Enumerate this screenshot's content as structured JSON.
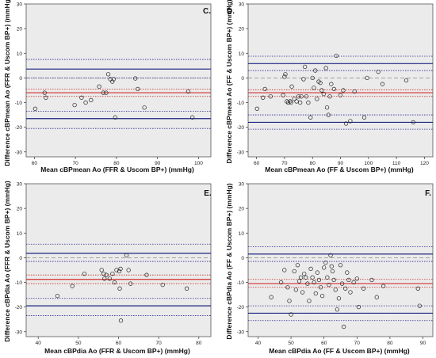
{
  "chart_data": [
    {
      "type": "scatter",
      "panel_label": "C.",
      "xlabel": "Mean cBPmean Ao (FFR & Uscom BP+) (mmHg)",
      "ylabel": "Difference cBPmean Ao (FFR & Uscom BP+) (mmHg)",
      "xlim": [
        58,
        103
      ],
      "ylim": [
        -32,
        30
      ],
      "xticks": [
        60,
        70,
        80,
        90,
        100
      ],
      "yticks": [
        30,
        20,
        10,
        0,
        -10,
        -20,
        -30
      ],
      "ref_lines": {
        "zero": 0,
        "mean_bias": -6.0,
        "bias_ci": [
          -4.5,
          -7.5
        ],
        "limits_of_agreement": [
          3.6,
          -16.5
        ],
        "loa_ci_upper": [
          7.5,
          0.0
        ],
        "loa_ci_lower": [
          -13.5,
          -20.5
        ]
      },
      "points": [
        [
          60.2,
          -12.5
        ],
        [
          62.5,
          -6.0
        ],
        [
          62.8,
          -8.0
        ],
        [
          69.8,
          -11.0
        ],
        [
          71.5,
          -8.0
        ],
        [
          72.5,
          -10.0
        ],
        [
          73.8,
          -9.0
        ],
        [
          75.8,
          -3.5
        ],
        [
          76.8,
          -6.0
        ],
        [
          77.5,
          -6.0
        ],
        [
          78.0,
          1.5
        ],
        [
          78.5,
          -0.5
        ],
        [
          79.0,
          -1.5
        ],
        [
          79.3,
          -0.5
        ],
        [
          79.7,
          -16.0
        ],
        [
          84.6,
          -0.2
        ],
        [
          85.2,
          -4.5
        ],
        [
          86.8,
          -12.0
        ],
        [
          97.5,
          -5.5
        ],
        [
          98.5,
          -16.0
        ]
      ]
    },
    {
      "type": "scatter",
      "panel_label": "D.",
      "xlabel": "Mean cBPmean Ao (FF & Uscom BP+) (mmHg)",
      "ylabel": "Difference cBPmean Ao (FF & Uscom BP+) (mmHg)",
      "xlim": [
        57,
        123
      ],
      "ylim": [
        -32,
        30
      ],
      "xticks": [
        60,
        70,
        80,
        90,
        100,
        110,
        120
      ],
      "yticks": [
        30,
        20,
        10,
        0,
        -10,
        -20,
        -30
      ],
      "ref_lines": {
        "zero": 0,
        "mean_bias": -6.0,
        "bias_ci": [
          -4.8,
          -7.5
        ],
        "limits_of_agreement": [
          5.8,
          -18.0
        ],
        "loa_ci_upper": [
          8.8,
          3.0
        ],
        "loa_ci_lower": [
          -15.0,
          -20.8
        ]
      },
      "points": [
        [
          60.2,
          -12.5
        ],
        [
          62.3,
          -8.0
        ],
        [
          63.0,
          -4.5
        ],
        [
          65.0,
          -7.5
        ],
        [
          69.5,
          -7.0
        ],
        [
          70.0,
          0.5
        ],
        [
          70.3,
          1.5
        ],
        [
          70.8,
          -9.5
        ],
        [
          71.3,
          -10.0
        ],
        [
          72.0,
          -9.5
        ],
        [
          72.3,
          -10.0
        ],
        [
          72.6,
          -3.5
        ],
        [
          73.5,
          -8.5
        ],
        [
          74.3,
          -9.5
        ],
        [
          75.0,
          -7.5
        ],
        [
          75.6,
          -10.0
        ],
        [
          76.0,
          -7.5
        ],
        [
          76.8,
          -0.5
        ],
        [
          77.3,
          4.5
        ],
        [
          77.8,
          -7.5
        ],
        [
          78.5,
          -10.0
        ],
        [
          79.3,
          -16.0
        ],
        [
          80.0,
          0.0
        ],
        [
          80.5,
          -4.0
        ],
        [
          81.0,
          3.0
        ],
        [
          81.6,
          -8.5
        ],
        [
          82.2,
          -1.5
        ],
        [
          82.8,
          -2.0
        ],
        [
          83.3,
          -5.0
        ],
        [
          84.0,
          -6.5
        ],
        [
          84.8,
          4.0
        ],
        [
          85.2,
          -12.0
        ],
        [
          85.7,
          -15.0
        ],
        [
          86.2,
          -7.5
        ],
        [
          86.7,
          -2.5
        ],
        [
          87.7,
          -4.5
        ],
        [
          88.5,
          9.0
        ],
        [
          90.0,
          -7.0
        ],
        [
          91.0,
          -5.0
        ],
        [
          92.0,
          -18.5
        ],
        [
          93.5,
          -17.5
        ],
        [
          95.0,
          -5.5
        ],
        [
          98.5,
          -16.0
        ],
        [
          99.5,
          0.0
        ],
        [
          103.5,
          2.5
        ],
        [
          105.0,
          -2.5
        ],
        [
          113.5,
          -1.0
        ],
        [
          116.0,
          -18.0
        ]
      ]
    },
    {
      "type": "scatter",
      "panel_label": "E.",
      "xlabel": "Mean cBPdia Ao (FFR & Uscom BP+) (mmHg)",
      "ylabel": "Difference cBPdia Ao (FFR & Uscom BP+) (mmHg)",
      "xlim": [
        37,
        83
      ],
      "ylim": [
        -32,
        30
      ],
      "xticks": [
        40,
        50,
        60,
        70,
        80
      ],
      "yticks": [
        30,
        20,
        10,
        0,
        -10,
        -20,
        -30
      ],
      "ref_lines": {
        "zero": 0,
        "mean_bias": -8.8,
        "bias_ci": [
          -7.0,
          -10.5
        ],
        "limits_of_agreement": [
          1.8,
          -19.5
        ],
        "loa_ci_upper": [
          5.5,
          -1.5
        ],
        "loa_ci_lower": [
          -16.5,
          -23.5
        ]
      },
      "points": [
        [
          44.8,
          -15.5
        ],
        [
          48.5,
          -11.5
        ],
        [
          51.5,
          -6.5
        ],
        [
          55.8,
          -5.0
        ],
        [
          56.3,
          -6.5
        ],
        [
          56.5,
          -8.5
        ],
        [
          57.0,
          -7.0
        ],
        [
          57.8,
          -8.5
        ],
        [
          58.5,
          -6.5
        ],
        [
          59.0,
          -10.0
        ],
        [
          59.5,
          -5.0
        ],
        [
          60.2,
          -5.5
        ],
        [
          60.5,
          -4.5
        ],
        [
          60.3,
          -12.5
        ],
        [
          60.6,
          -25.5
        ],
        [
          62.0,
          1.0
        ],
        [
          62.5,
          -5.0
        ],
        [
          63.0,
          -10.5
        ],
        [
          67.0,
          -7.0
        ],
        [
          71.0,
          -11.0
        ],
        [
          77.0,
          -12.5
        ]
      ]
    },
    {
      "type": "scatter",
      "panel_label": "F.",
      "xlabel": "Mean cBPdia Ao (FF & Uscom BP+) (mmHg)",
      "ylabel": "Difference cBPdia Ao (FF & Uscom BP+) (mmHg)",
      "xlim": [
        37,
        93
      ],
      "ylim": [
        -32,
        30
      ],
      "xticks": [
        40,
        50,
        60,
        70,
        80,
        90
      ],
      "yticks": [
        30,
        20,
        10,
        0,
        -10,
        -20,
        -30
      ],
      "ref_lines": {
        "zero": 0,
        "mean_bias": -10.5,
        "bias_ci": [
          -8.8,
          -12.0
        ],
        "limits_of_agreement": [
          1.5,
          -22.5
        ],
        "loa_ci_upper": [
          4.5,
          -1.5
        ],
        "loa_ci_lower": [
          -19.5,
          -25.5
        ]
      },
      "points": [
        [
          44.0,
          -16.0
        ],
        [
          47.0,
          -10.0
        ],
        [
          48.0,
          -5.0
        ],
        [
          49.0,
          -12.0
        ],
        [
          49.5,
          -17.5
        ],
        [
          50.0,
          -23.0
        ],
        [
          51.0,
          -5.5
        ],
        [
          51.5,
          -13.0
        ],
        [
          52.0,
          -3.0
        ],
        [
          52.5,
          -9.5
        ],
        [
          53.0,
          -8.0
        ],
        [
          53.5,
          -14.0
        ],
        [
          54.0,
          -6.5
        ],
        [
          54.5,
          -8.0
        ],
        [
          55.0,
          -10.5
        ],
        [
          55.5,
          -17.5
        ],
        [
          56.0,
          -4.5
        ],
        [
          56.5,
          -8.0
        ],
        [
          57.0,
          -10.0
        ],
        [
          57.5,
          -14.5
        ],
        [
          58.0,
          -6.0
        ],
        [
          58.5,
          -9.0
        ],
        [
          59.0,
          -12.0
        ],
        [
          59.5,
          -15.5
        ],
        [
          60.0,
          -4.0
        ],
        [
          60.5,
          -2.0
        ],
        [
          61.0,
          -8.0
        ],
        [
          61.5,
          -11.0
        ],
        [
          62.0,
          1.0
        ],
        [
          62.3,
          -3.5
        ],
        [
          62.6,
          -5.5
        ],
        [
          63.0,
          -9.0
        ],
        [
          63.5,
          -13.0
        ],
        [
          64.0,
          -21.0
        ],
        [
          64.5,
          -16.5
        ],
        [
          65.0,
          -3.0
        ],
        [
          65.5,
          -10.5
        ],
        [
          66.0,
          -28.0
        ],
        [
          66.5,
          -12.5
        ],
        [
          67.0,
          -6.0
        ],
        [
          67.5,
          -9.0
        ],
        [
          68.0,
          -14.0
        ],
        [
          69.0,
          -10.0
        ],
        [
          70.0,
          -8.5
        ],
        [
          70.5,
          -20.0
        ],
        [
          72.0,
          -12.5
        ],
        [
          74.5,
          -9.0
        ],
        [
          76.0,
          -16.0
        ],
        [
          78.0,
          -11.5
        ],
        [
          88.5,
          -12.5
        ],
        [
          89.0,
          -19.5
        ]
      ]
    }
  ]
}
